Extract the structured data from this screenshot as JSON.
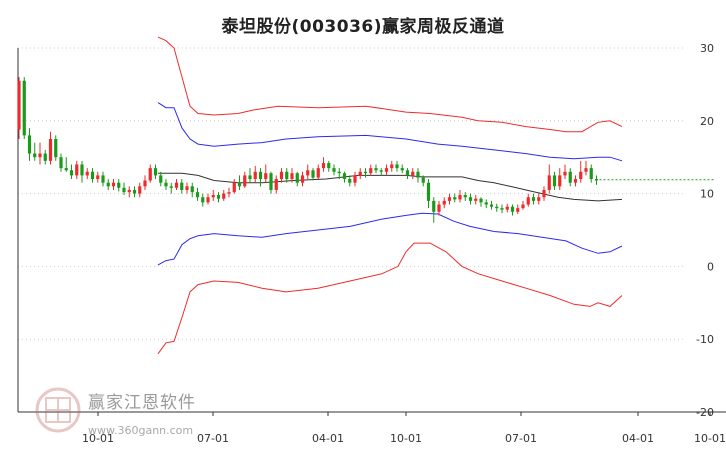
{
  "title": "泰坦股份(003036)赢家周极反通道",
  "watermark": {
    "brand": "赢家江恩软件",
    "url": "www.360gann.com"
  },
  "colors": {
    "upper_outer": "#ee2b2b",
    "upper_inner": "#2b2bee",
    "middle": "#333333",
    "lower_inner": "#2b2bee",
    "lower_outer": "#ee2b2b",
    "candle_up": "#ee2b2b",
    "candle_down": "#1a9a1a",
    "last_price": "#1a9a1a"
  },
  "chart_data": {
    "type": "candlestick",
    "title": "泰坦股份(003036)赢家周极反通道",
    "ylim": [
      -20,
      30
    ],
    "yticks": [
      30,
      20,
      10,
      0,
      -10,
      -20
    ],
    "xticks": [
      "10-01",
      "07-01",
      "04-01",
      "10-01",
      "07-01",
      "04-01",
      "10-01"
    ],
    "grid": true,
    "candles": [
      [
        18.8,
        25.5,
        26.0,
        17.5
      ],
      [
        25.5,
        18.0,
        26.0,
        17.5
      ],
      [
        18.0,
        15.5,
        19.0,
        14.5
      ],
      [
        15.5,
        15.0,
        17.0,
        14.5
      ],
      [
        15.0,
        15.5,
        17.0,
        14.0
      ],
      [
        15.5,
        14.5,
        16.0,
        14.0
      ],
      [
        14.5,
        17.5,
        18.5,
        14.0
      ],
      [
        17.5,
        15.0,
        18.0,
        14.5
      ],
      [
        15.0,
        13.5,
        15.5,
        13.0
      ],
      [
        13.5,
        13.2,
        15.0,
        13.0
      ],
      [
        13.2,
        12.5,
        14.0,
        12.0
      ],
      [
        12.5,
        14.0,
        14.5,
        12.0
      ],
      [
        14.0,
        12.5,
        14.5,
        11.5
      ],
      [
        12.5,
        13.0,
        13.5,
        12.0
      ],
      [
        13.0,
        12.0,
        13.5,
        11.5
      ],
      [
        12.0,
        12.5,
        13.0,
        11.5
      ],
      [
        12.5,
        11.5,
        13.0,
        11.0
      ],
      [
        11.5,
        11.0,
        12.0,
        10.5
      ],
      [
        11.0,
        11.5,
        12.0,
        10.5
      ],
      [
        11.5,
        10.8,
        12.0,
        10.3
      ],
      [
        10.8,
        10.2,
        11.5,
        9.8
      ],
      [
        10.2,
        10.5,
        11.0,
        9.5
      ],
      [
        10.5,
        10.0,
        11.0,
        9.5
      ],
      [
        10.0,
        11.0,
        11.5,
        9.5
      ],
      [
        11.0,
        11.8,
        12.5,
        10.5
      ],
      [
        11.8,
        13.5,
        14.0,
        11.5
      ],
      [
        13.5,
        12.5,
        14.0,
        12.0
      ],
      [
        12.5,
        11.5,
        13.0,
        11.0
      ],
      [
        11.5,
        11.0,
        12.0,
        10.5
      ],
      [
        11.0,
        10.8,
        11.5,
        10.0
      ],
      [
        10.8,
        11.5,
        12.0,
        10.5
      ],
      [
        11.5,
        10.5,
        12.0,
        10.0
      ],
      [
        10.5,
        11.0,
        11.5,
        10.0
      ],
      [
        11.0,
        10.2,
        11.5,
        9.5
      ],
      [
        10.2,
        9.5,
        10.8,
        9.0
      ],
      [
        9.5,
        8.8,
        10.0,
        8.2
      ],
      [
        8.8,
        9.5,
        10.0,
        8.5
      ],
      [
        9.5,
        9.8,
        10.5,
        9.0
      ],
      [
        9.8,
        9.3,
        10.2,
        8.8
      ],
      [
        9.3,
        10.0,
        10.5,
        9.0
      ],
      [
        10.0,
        10.2,
        10.8,
        9.5
      ],
      [
        10.2,
        11.5,
        12.0,
        10.0
      ],
      [
        11.5,
        11.0,
        12.5,
        10.5
      ],
      [
        11.0,
        12.5,
        13.0,
        10.8
      ],
      [
        12.5,
        12.0,
        13.5,
        11.5
      ],
      [
        12.0,
        13.0,
        13.8,
        11.5
      ],
      [
        13.0,
        12.0,
        13.5,
        11.0
      ],
      [
        12.0,
        12.8,
        14.0,
        11.5
      ],
      [
        12.8,
        10.5,
        13.0,
        10.0
      ],
      [
        10.5,
        12.0,
        12.5,
        10.0
      ],
      [
        12.0,
        13.0,
        13.5,
        11.5
      ],
      [
        13.0,
        12.0,
        13.5,
        11.5
      ],
      [
        12.0,
        12.8,
        13.5,
        11.5
      ],
      [
        12.8,
        11.5,
        13.0,
        11.0
      ],
      [
        11.5,
        12.5,
        13.0,
        11.0
      ],
      [
        12.5,
        13.2,
        14.0,
        12.0
      ],
      [
        13.2,
        12.2,
        13.5,
        11.8
      ],
      [
        12.2,
        13.5,
        14.0,
        12.0
      ],
      [
        13.5,
        14.2,
        15.0,
        13.0
      ],
      [
        14.2,
        13.5,
        14.5,
        13.0
      ],
      [
        13.5,
        13.0,
        14.0,
        12.5
      ],
      [
        13.0,
        12.8,
        13.5,
        12.0
      ],
      [
        12.8,
        12.0,
        13.0,
        11.5
      ],
      [
        12.0,
        11.5,
        12.5,
        11.0
      ],
      [
        11.5,
        12.5,
        13.0,
        11.0
      ],
      [
        12.5,
        13.0,
        13.5,
        12.0
      ],
      [
        13.0,
        12.8,
        13.5,
        12.2
      ],
      [
        12.8,
        13.5,
        14.0,
        12.5
      ],
      [
        13.5,
        13.2,
        14.0,
        12.8
      ],
      [
        13.2,
        13.0,
        13.5,
        12.5
      ],
      [
        13.0,
        13.5,
        14.0,
        12.5
      ],
      [
        13.5,
        14.0,
        14.5,
        13.0
      ],
      [
        14.0,
        13.5,
        14.5,
        13.0
      ],
      [
        13.5,
        13.2,
        14.0,
        12.8
      ],
      [
        13.2,
        12.5,
        13.5,
        12.0
      ],
      [
        12.5,
        13.0,
        13.5,
        12.0
      ],
      [
        13.0,
        12.2,
        13.5,
        11.5
      ],
      [
        12.2,
        11.5,
        12.5,
        11.0
      ],
      [
        11.5,
        9.0,
        12.0,
        8.0
      ],
      [
        9.0,
        7.5,
        9.5,
        6.0
      ],
      [
        7.5,
        8.5,
        9.0,
        7.0
      ],
      [
        8.5,
        9.0,
        9.5,
        8.0
      ],
      [
        9.0,
        9.5,
        10.0,
        8.5
      ],
      [
        9.5,
        9.2,
        10.0,
        8.8
      ],
      [
        9.2,
        9.8,
        10.5,
        8.8
      ],
      [
        9.8,
        9.5,
        10.2,
        9.0
      ],
      [
        9.5,
        9.0,
        10.0,
        8.5
      ],
      [
        9.0,
        9.3,
        9.8,
        8.5
      ],
      [
        9.3,
        8.8,
        9.5,
        8.2
      ],
      [
        8.8,
        8.5,
        9.2,
        8.0
      ],
      [
        8.5,
        8.2,
        9.0,
        7.8
      ],
      [
        8.2,
        8.0,
        8.6,
        7.5
      ],
      [
        8.0,
        7.8,
        8.5,
        7.3
      ],
      [
        7.8,
        8.2,
        8.6,
        7.4
      ],
      [
        8.2,
        7.5,
        8.5,
        7.0
      ],
      [
        7.5,
        8.0,
        8.5,
        7.2
      ],
      [
        8.0,
        8.5,
        9.0,
        7.8
      ],
      [
        8.5,
        9.5,
        10.0,
        8.2
      ],
      [
        9.5,
        9.0,
        10.0,
        8.5
      ],
      [
        9.0,
        9.5,
        10.0,
        8.5
      ],
      [
        9.5,
        10.5,
        11.0,
        9.0
      ],
      [
        10.5,
        12.5,
        14.0,
        10.0
      ],
      [
        12.5,
        11.0,
        13.0,
        10.5
      ],
      [
        11.0,
        12.5,
        13.5,
        10.5
      ],
      [
        12.5,
        13.0,
        14.0,
        12.0
      ],
      [
        13.0,
        11.5,
        13.5,
        11.0
      ],
      [
        11.5,
        12.0,
        12.5,
        11.0
      ],
      [
        12.0,
        13.0,
        14.5,
        11.5
      ],
      [
        13.0,
        13.5,
        14.5,
        12.5
      ],
      [
        13.5,
        12.0,
        14.0,
        11.5
      ],
      [
        12.0,
        11.8,
        12.5,
        11.2
      ]
    ],
    "last_price": 11.9,
    "channels": {
      "upper_outer": [
        [
          0,
          31.5
        ],
        [
          2,
          31
        ],
        [
          4,
          30
        ],
        [
          6,
          26
        ],
        [
          8,
          22
        ],
        [
          10,
          21
        ],
        [
          14,
          20.8
        ],
        [
          20,
          21
        ],
        [
          24,
          21.5
        ],
        [
          30,
          22
        ],
        [
          40,
          21.8
        ],
        [
          52,
          22
        ],
        [
          62,
          21.2
        ],
        [
          68,
          21
        ],
        [
          76,
          20.5
        ],
        [
          80,
          20
        ],
        [
          86,
          19.8
        ],
        [
          92,
          19.2
        ],
        [
          98,
          18.8
        ],
        [
          102,
          18.5
        ],
        [
          106,
          18.5
        ],
        [
          110,
          19.8
        ],
        [
          113,
          20
        ],
        [
          116,
          19.2
        ]
      ],
      "upper_inner": [
        [
          0,
          22.5
        ],
        [
          2,
          21.8
        ],
        [
          4,
          21.8
        ],
        [
          6,
          19
        ],
        [
          8,
          17.5
        ],
        [
          10,
          16.8
        ],
        [
          14,
          16.5
        ],
        [
          20,
          16.8
        ],
        [
          26,
          17
        ],
        [
          32,
          17.5
        ],
        [
          40,
          17.8
        ],
        [
          52,
          18
        ],
        [
          62,
          17.5
        ],
        [
          70,
          16.8
        ],
        [
          76,
          16.5
        ],
        [
          84,
          16
        ],
        [
          92,
          15.5
        ],
        [
          98,
          15
        ],
        [
          104,
          14.8
        ],
        [
          110,
          15
        ],
        [
          113,
          15
        ],
        [
          116,
          14.5
        ]
      ],
      "middle": [
        [
          0,
          12.8
        ],
        [
          6,
          12.8
        ],
        [
          10,
          12.5
        ],
        [
          14,
          11.8
        ],
        [
          20,
          11.5
        ],
        [
          26,
          11.5
        ],
        [
          34,
          11.8
        ],
        [
          42,
          12
        ],
        [
          50,
          12.5
        ],
        [
          56,
          12.5
        ],
        [
          62,
          12.5
        ],
        [
          66,
          12.3
        ],
        [
          70,
          12.3
        ],
        [
          76,
          12.3
        ],
        [
          80,
          11.8
        ],
        [
          84,
          11.5
        ],
        [
          88,
          11
        ],
        [
          92,
          10.5
        ],
        [
          96,
          10
        ],
        [
          100,
          9.5
        ],
        [
          104,
          9.2
        ],
        [
          110,
          9
        ],
        [
          116,
          9.2
        ]
      ],
      "lower_inner": [
        [
          0,
          0.2
        ],
        [
          2,
          0.8
        ],
        [
          4,
          1
        ],
        [
          6,
          3
        ],
        [
          8,
          3.8
        ],
        [
          10,
          4.2
        ],
        [
          14,
          4.5
        ],
        [
          20,
          4.2
        ],
        [
          26,
          4
        ],
        [
          32,
          4.5
        ],
        [
          40,
          5
        ],
        [
          48,
          5.5
        ],
        [
          56,
          6.5
        ],
        [
          62,
          7
        ],
        [
          66,
          7.3
        ],
        [
          70,
          7.2
        ],
        [
          74,
          6.2
        ],
        [
          78,
          5.5
        ],
        [
          84,
          4.8
        ],
        [
          90,
          4.5
        ],
        [
          96,
          4
        ],
        [
          102,
          3.5
        ],
        [
          106,
          2.5
        ],
        [
          110,
          1.8
        ],
        [
          113,
          2
        ],
        [
          116,
          2.8
        ]
      ],
      "lower_outer": [
        [
          0,
          -12
        ],
        [
          2,
          -10.5
        ],
        [
          4,
          -10.3
        ],
        [
          6,
          -7
        ],
        [
          8,
          -3.5
        ],
        [
          10,
          -2.5
        ],
        [
          14,
          -2
        ],
        [
          20,
          -2.2
        ],
        [
          26,
          -3
        ],
        [
          32,
          -3.5
        ],
        [
          40,
          -3
        ],
        [
          48,
          -2
        ],
        [
          56,
          -1
        ],
        [
          60,
          0
        ],
        [
          62,
          2
        ],
        [
          64,
          3.2
        ],
        [
          68,
          3.2
        ],
        [
          72,
          2
        ],
        [
          76,
          0
        ],
        [
          80,
          -1
        ],
        [
          86,
          -2
        ],
        [
          92,
          -3
        ],
        [
          98,
          -4
        ],
        [
          104,
          -5.2
        ],
        [
          108,
          -5.5
        ],
        [
          110,
          -5
        ],
        [
          113,
          -5.5
        ],
        [
          116,
          -4
        ]
      ]
    }
  }
}
